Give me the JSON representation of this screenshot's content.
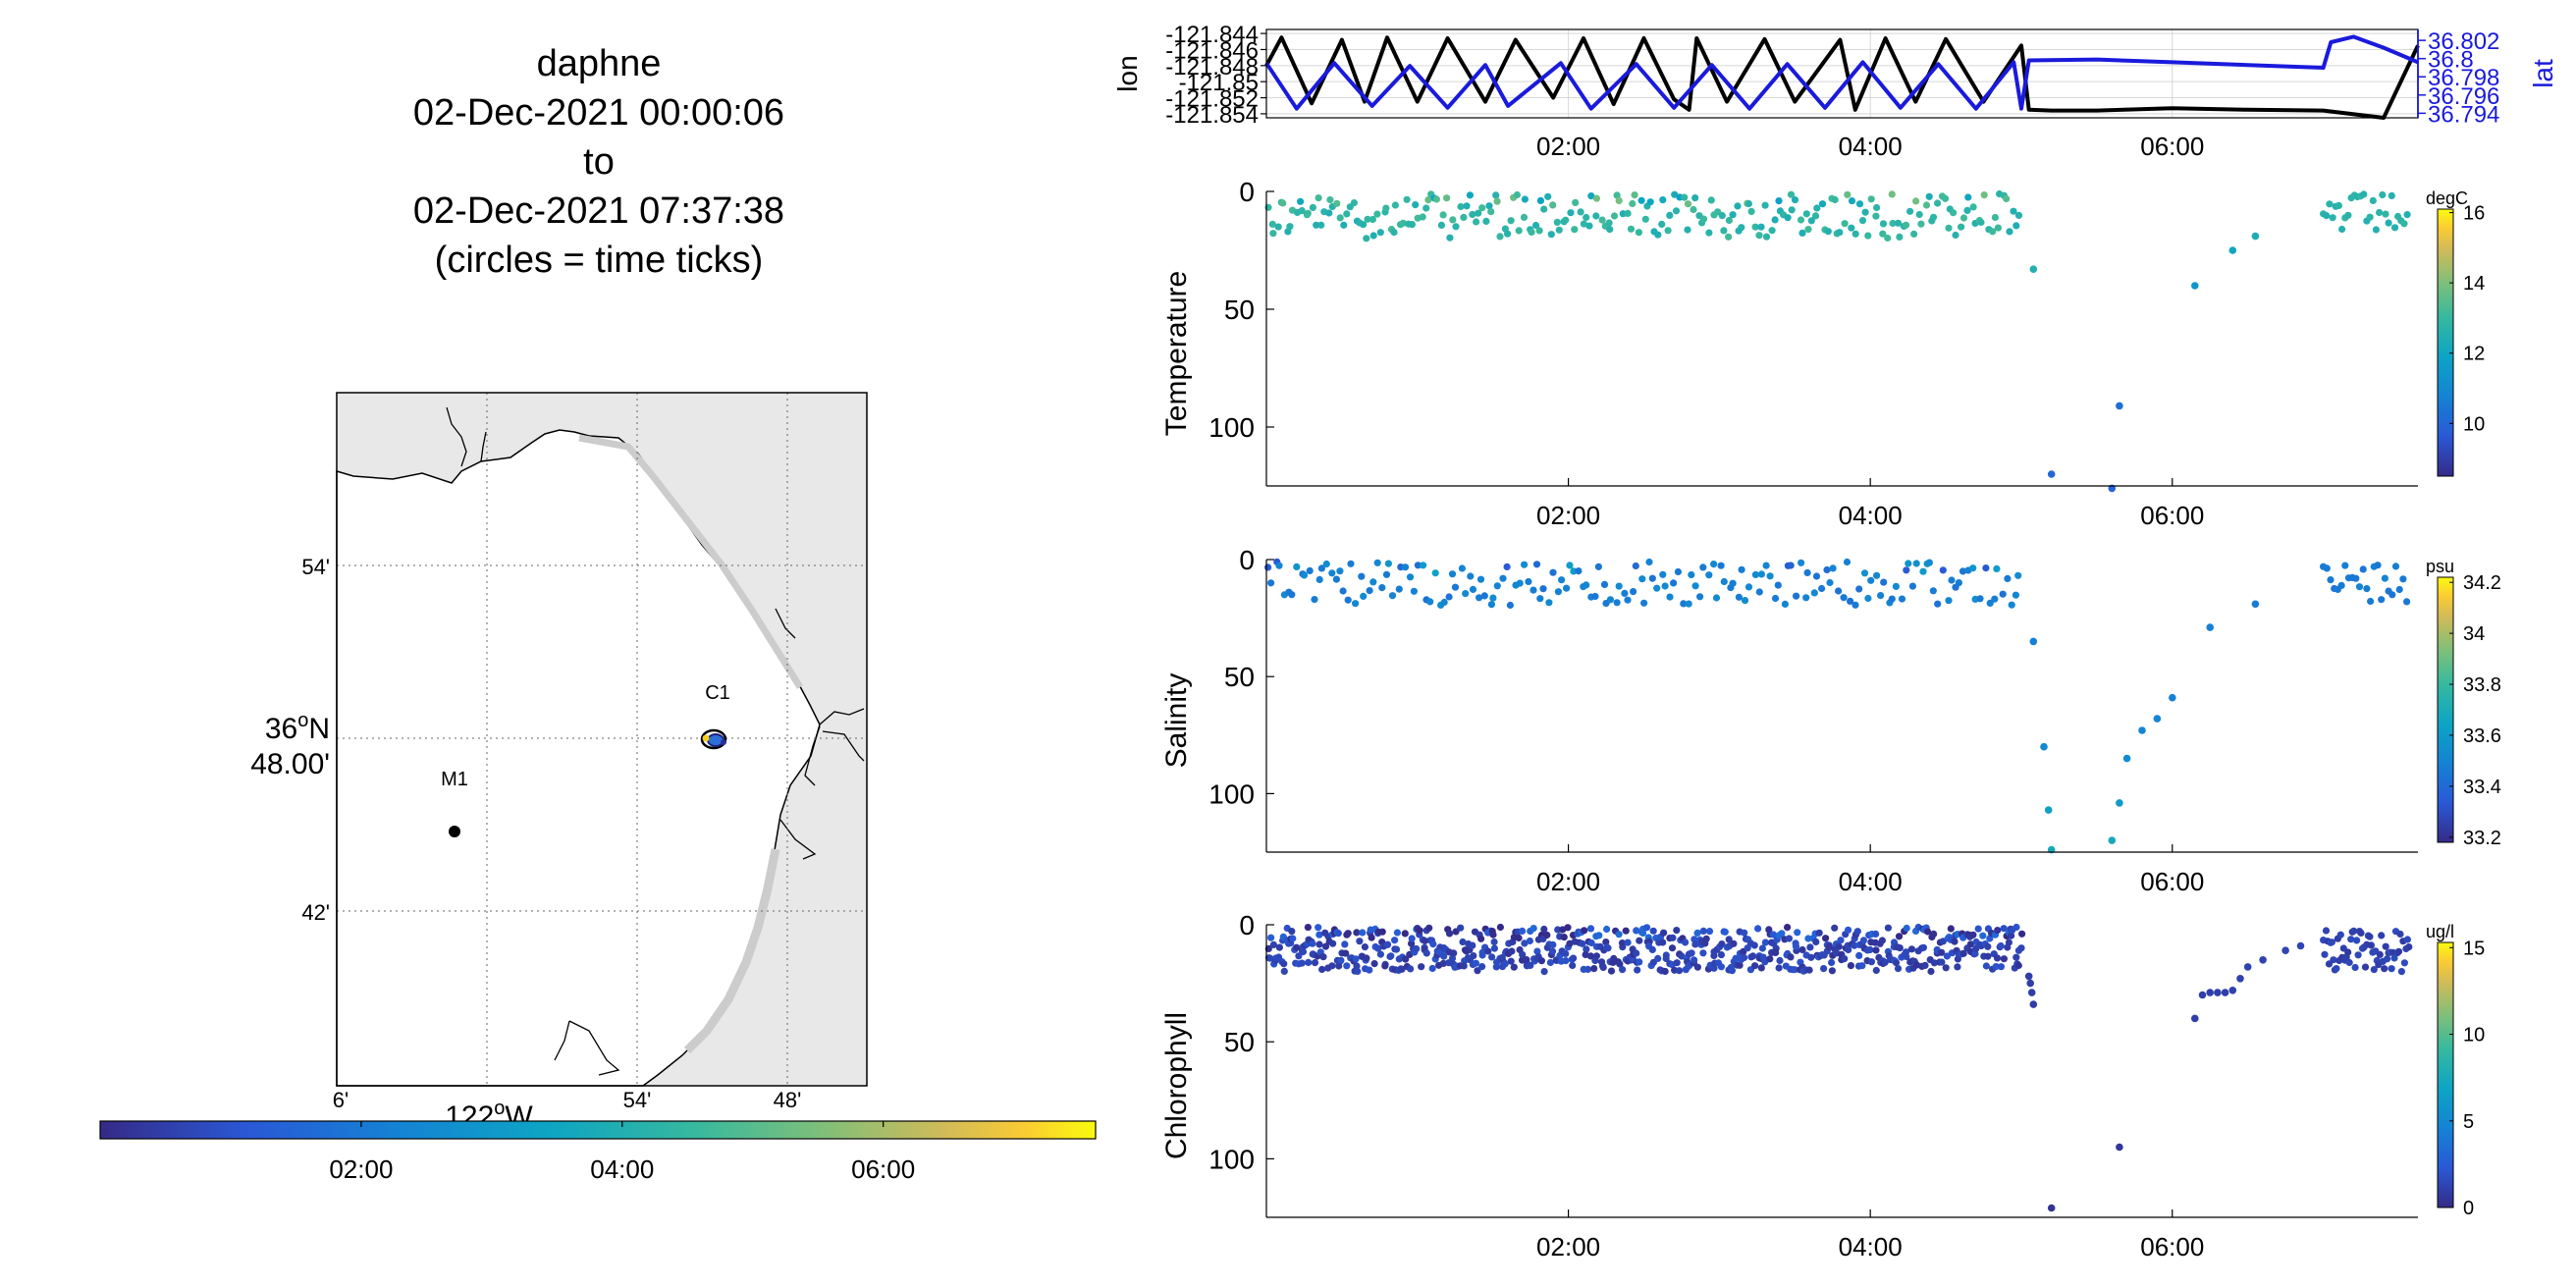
{
  "title": {
    "vehicle": "daphne",
    "start": "02-Dec-2021 00:00:06",
    "to": "to",
    "end": "02-Dec-2021 07:37:38",
    "note": "(circles = time ticks)"
  },
  "map": {
    "lat_ticks": [
      "54'",
      "36°N 48.00'",
      "42'"
    ],
    "lon_ticks": [
      "6'",
      "122°W",
      "54'",
      "48'"
    ],
    "lat_deg": "36",
    "lat_suffix": "N",
    "lat_min": "48.00'",
    "lon_deg": "122",
    "lon_suffix": "W",
    "stations": [
      {
        "name": "C1"
      },
      {
        "name": "M1"
      }
    ],
    "colors": {
      "land": "#e8e8e8",
      "water": "#ffffff",
      "coast": "#000000"
    }
  },
  "time_colorbar": {
    "ticks": [
      "02:00",
      "04:00",
      "06:00"
    ],
    "tick_hours": [
      2,
      4,
      6
    ],
    "range_hours": [
      0,
      7.627
    ]
  },
  "chart_data": [
    {
      "type": "line",
      "title": "",
      "ylabel": "lon",
      "y2label": "lat",
      "xlabel": "",
      "xlim_hours": [
        0,
        7.627
      ],
      "x_ticks": [
        "02:00",
        "04:00",
        "06:00"
      ],
      "x_tick_hours": [
        2,
        4,
        6
      ],
      "ylim": [
        -121.8545,
        -121.8435
      ],
      "y_ticks": [
        "-121.844",
        "-121.846",
        "-121.848",
        "-121.85",
        "-121.852",
        "-121.854"
      ],
      "y_tick_values": [
        -121.844,
        -121.846,
        -121.848,
        -121.85,
        -121.852,
        -121.854
      ],
      "y2lim": [
        36.7935,
        36.8032
      ],
      "y2_ticks": [
        "36.802",
        "36.8",
        "36.798",
        "36.796",
        "36.794"
      ],
      "y2_tick_values": [
        36.802,
        36.8,
        36.798,
        36.796,
        36.794
      ],
      "grid": true,
      "series": [
        {
          "color": "#000000",
          "axis": "left",
          "x": [
            0.0,
            0.1,
            0.3,
            0.5,
            0.65,
            0.8,
            1.0,
            1.2,
            1.45,
            1.65,
            1.9,
            2.1,
            2.3,
            2.5,
            2.7,
            2.8,
            2.85,
            3.05,
            3.3,
            3.5,
            3.8,
            3.9,
            4.1,
            4.3,
            4.5,
            4.75,
            5.0,
            5.05,
            5.2,
            5.5,
            6.0,
            6.5,
            7.0,
            7.4,
            7.627
          ],
          "y": [
            -121.848,
            -121.8445,
            -121.8527,
            -121.8448,
            -121.8525,
            -121.8445,
            -121.8525,
            -121.8446,
            -121.8525,
            -121.8448,
            -121.852,
            -121.8446,
            -121.8528,
            -121.8446,
            -121.8522,
            -121.8535,
            -121.8446,
            -121.8525,
            -121.8447,
            -121.8525,
            -121.8448,
            -121.8535,
            -121.8446,
            -121.8525,
            -121.8447,
            -121.8525,
            -121.8455,
            -121.8535,
            -121.8536,
            -121.8536,
            -121.8533,
            -121.8535,
            -121.8536,
            -121.8545,
            -121.8455
          ]
        },
        {
          "color": "#1a1adc",
          "axis": "right",
          "x": [
            0.0,
            0.2,
            0.45,
            0.7,
            0.95,
            1.2,
            1.45,
            1.6,
            1.95,
            2.15,
            2.45,
            2.7,
            2.95,
            3.2,
            3.45,
            3.7,
            3.95,
            4.2,
            4.45,
            4.7,
            4.95,
            5.0,
            5.05,
            5.5,
            6.0,
            6.5,
            7.0,
            7.05,
            7.2,
            7.4,
            7.627
          ],
          "y": [
            36.7995,
            36.7945,
            36.7995,
            36.7948,
            36.7992,
            36.7946,
            36.7993,
            36.7948,
            36.7995,
            36.7945,
            36.7994,
            36.7946,
            36.7993,
            36.7945,
            36.7994,
            36.7946,
            36.7996,
            36.7946,
            36.7994,
            36.7945,
            36.7996,
            36.7945,
            36.7998,
            36.7999,
            36.7996,
            36.7993,
            36.799,
            36.8018,
            36.8024,
            36.8012,
            36.7996
          ]
        }
      ]
    },
    {
      "type": "scatter",
      "ylabel": "Temperature",
      "units": "degC",
      "xlim_hours": [
        0,
        7.627
      ],
      "ylim": [
        0,
        125
      ],
      "y_reversed": true,
      "y_ticks": [
        "0",
        "50",
        "100"
      ],
      "y_tick_values": [
        0,
        50,
        100
      ],
      "x_ticks": [
        "02:00",
        "04:00",
        "06:00"
      ],
      "x_tick_hours": [
        2,
        4,
        6
      ],
      "clim": [
        8.5,
        16.1
      ],
      "colorbar_ticks": [
        "16",
        "14",
        "12",
        "10"
      ],
      "colorbar_tick_values": [
        16,
        14,
        12,
        10
      ],
      "band": {
        "x_end": 5.0,
        "depth_min": 1,
        "depth_max": 20,
        "value": 12.8,
        "count": 240
      },
      "extra_points": [
        {
          "x": 5.08,
          "depth": 33,
          "value": 12.5
        },
        {
          "x": 5.2,
          "depth": 120,
          "value": 10.0
        },
        {
          "x": 5.6,
          "depth": 126,
          "value": 9.9
        },
        {
          "x": 5.65,
          "depth": 91,
          "value": 10.3
        },
        {
          "x": 6.15,
          "depth": 40,
          "value": 11.4
        },
        {
          "x": 6.4,
          "depth": 25,
          "value": 12.0
        },
        {
          "x": 6.55,
          "depth": 19,
          "value": 12.3
        }
      ],
      "tail_band": {
        "x_start": 7.0,
        "x_end": 7.627,
        "depth_min": 1,
        "depth_max": 18,
        "value": 12.7,
        "count": 28
      }
    },
    {
      "type": "scatter",
      "ylabel": "Salinity",
      "units": "psu",
      "xlim_hours": [
        0,
        7.627
      ],
      "ylim": [
        0,
        125
      ],
      "y_reversed": true,
      "y_ticks": [
        "0",
        "50",
        "100"
      ],
      "y_tick_values": [
        0,
        50,
        100
      ],
      "x_ticks": [
        "02:00",
        "04:00",
        "06:00"
      ],
      "x_tick_hours": [
        2,
        4,
        6
      ],
      "clim": [
        33.18,
        34.22
      ],
      "colorbar_ticks": [
        "34.2",
        "34",
        "33.8",
        "33.6",
        "33.4",
        "33.2"
      ],
      "colorbar_tick_values": [
        34.2,
        34.0,
        33.8,
        33.6,
        33.4,
        33.2
      ],
      "band": {
        "x_end": 5.0,
        "depth_min": 1,
        "depth_max": 20,
        "value": 33.48,
        "count": 180
      },
      "extra_points": [
        {
          "x": 5.08,
          "depth": 35,
          "value": 33.48
        },
        {
          "x": 5.15,
          "depth": 80,
          "value": 33.52
        },
        {
          "x": 5.18,
          "depth": 107,
          "value": 33.62
        },
        {
          "x": 5.2,
          "depth": 124,
          "value": 33.68
        },
        {
          "x": 5.6,
          "depth": 120,
          "value": 33.68
        },
        {
          "x": 5.65,
          "depth": 104,
          "value": 33.6
        },
        {
          "x": 5.7,
          "depth": 85,
          "value": 33.53
        },
        {
          "x": 5.8,
          "depth": 73,
          "value": 33.5
        },
        {
          "x": 5.9,
          "depth": 68,
          "value": 33.5
        },
        {
          "x": 6.0,
          "depth": 59,
          "value": 33.49
        },
        {
          "x": 6.25,
          "depth": 29,
          "value": 33.48
        },
        {
          "x": 6.55,
          "depth": 19,
          "value": 33.47
        }
      ],
      "tail_band": {
        "x_start": 7.0,
        "x_end": 7.627,
        "depth_min": 1,
        "depth_max": 18,
        "value": 33.47,
        "count": 24
      }
    },
    {
      "type": "scatter",
      "ylabel": "Chlorophyll",
      "units": "ug/l",
      "xlim_hours": [
        0,
        7.627
      ],
      "ylim": [
        0,
        125
      ],
      "y_reversed": true,
      "y_ticks": [
        "0",
        "50",
        "100"
      ],
      "y_tick_values": [
        0,
        50,
        100
      ],
      "x_ticks": [
        "02:00",
        "04:00",
        "06:00"
      ],
      "x_tick_hours": [
        2,
        4,
        6
      ],
      "clim": [
        0,
        15.3
      ],
      "colorbar_ticks": [
        "15",
        "10",
        "5",
        "0"
      ],
      "colorbar_tick_values": [
        15,
        10,
        5,
        0
      ],
      "band": {
        "x_end": 5.0,
        "depth_min": 1,
        "depth_max": 20,
        "value": 1.2,
        "count": 650
      },
      "extra_points": [
        {
          "x": 5.05,
          "depth": 22,
          "value": 1.0
        },
        {
          "x": 5.06,
          "depth": 25,
          "value": 1.0
        },
        {
          "x": 5.07,
          "depth": 29,
          "value": 1.0
        },
        {
          "x": 5.08,
          "depth": 34,
          "value": 0.9
        },
        {
          "x": 5.2,
          "depth": 121,
          "value": 0.5
        },
        {
          "x": 5.65,
          "depth": 95,
          "value": 0.6
        },
        {
          "x": 6.15,
          "depth": 40,
          "value": 1.0
        },
        {
          "x": 6.2,
          "depth": 30,
          "value": 1.0
        },
        {
          "x": 6.25,
          "depth": 29,
          "value": 1.0
        },
        {
          "x": 6.3,
          "depth": 29,
          "value": 1.0
        },
        {
          "x": 6.35,
          "depth": 29,
          "value": 1.0
        },
        {
          "x": 6.4,
          "depth": 28,
          "value": 1.1
        },
        {
          "x": 6.45,
          "depth": 23,
          "value": 1.1
        },
        {
          "x": 6.5,
          "depth": 18,
          "value": 1.2
        },
        {
          "x": 6.6,
          "depth": 15,
          "value": 1.2
        },
        {
          "x": 6.75,
          "depth": 11,
          "value": 1.3
        },
        {
          "x": 6.85,
          "depth": 9,
          "value": 1.3
        }
      ],
      "tail_band": {
        "x_start": 7.0,
        "x_end": 7.627,
        "depth_min": 1,
        "depth_max": 20,
        "value": 1.2,
        "count": 60
      }
    }
  ]
}
